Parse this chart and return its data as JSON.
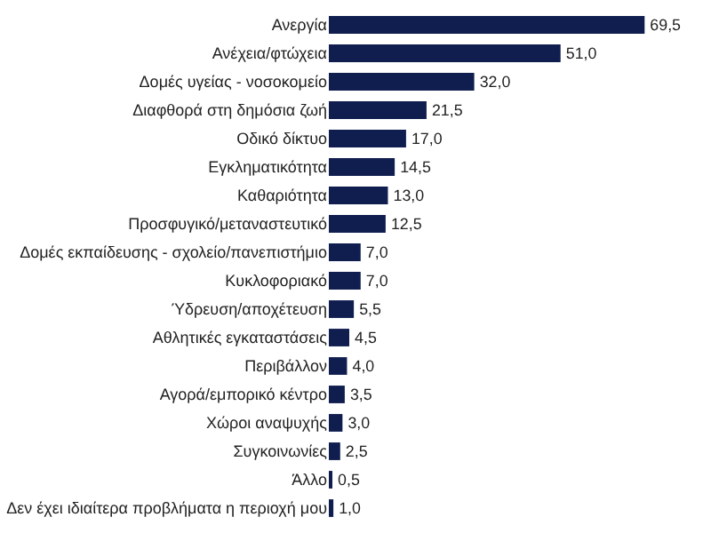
{
  "chart_data": {
    "type": "bar",
    "orientation": "horizontal",
    "tick_labels": "y",
    "categories": [
      "Ανεργία",
      "Ανέχεια/φτώχεια",
      "Δομές υγείας - νοσοκομείο",
      "Διαφθορά στη δημόσια ζωή",
      "Οδικό δίκτυο",
      "Εγκληματικότητα",
      "Καθαριότητα",
      "Προσφυγικό/μεταναστευτικό",
      "Δομές εκπαίδευσης - σχολείο/πανεπιστήμιο",
      "Κυκλοφοριακό",
      "Ύδρευση/αποχέτευση",
      "Αθλητικές εγκαταστάσεις",
      "Περιβάλλον",
      "Αγορά/εμπορικό κέντρο",
      "Χώροι αναψυχής",
      "Συγκοινωνίες",
      "Άλλο",
      "Δεν έχει ιδιαίτερα προβλήματα η περιοχή μου"
    ],
    "values": [
      69.5,
      51.0,
      32.0,
      21.5,
      17.0,
      14.5,
      13.0,
      12.5,
      7.0,
      7.0,
      5.5,
      4.5,
      4.0,
      3.5,
      3.0,
      2.5,
      0.5,
      1.0
    ],
    "value_labels": [
      "69,5",
      "51,0",
      "32,0",
      "21,5",
      "17,0",
      "14,5",
      "13,0",
      "12,5",
      "7,0",
      "7,0",
      "5,5",
      "4,5",
      "4,0",
      "3,5",
      "3,0",
      "2,5",
      "0,5",
      "1,0"
    ],
    "color": "#0f1d4f"
  }
}
